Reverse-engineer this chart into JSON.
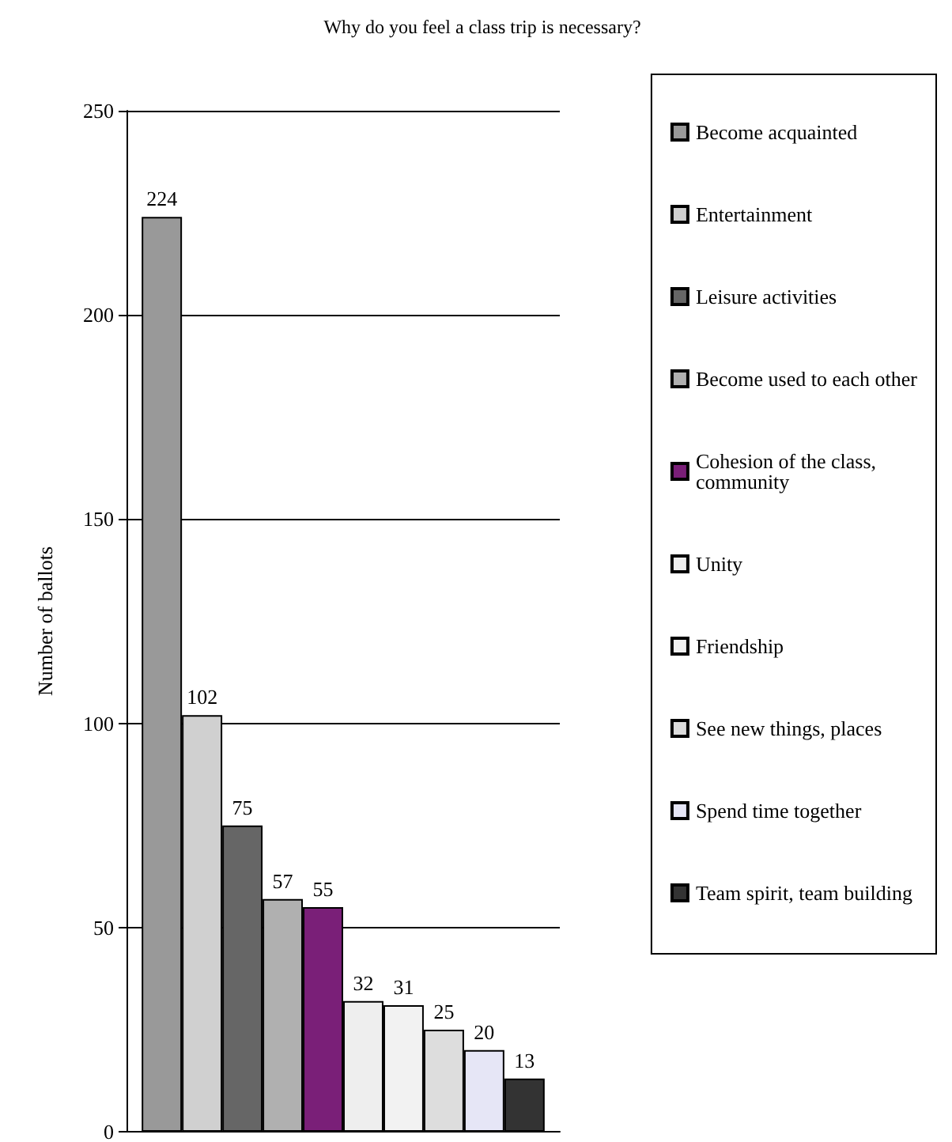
{
  "chart_data": {
    "type": "bar",
    "title": "Why do you feel a class trip is necessary?",
    "ylabel": "Number of ballots",
    "categories": [
      null
    ],
    "series": [
      {
        "name": "Become acquainted",
        "color": "#999999",
        "values": [
          224
        ]
      },
      {
        "name": "Entertainment",
        "color": "#d0d0d0",
        "values": [
          102
        ]
      },
      {
        "name": "Leisure activities",
        "color": "#666666",
        "values": [
          75
        ]
      },
      {
        "name": "Become used to each other",
        "color": "#b0b0b0",
        "values": [
          57
        ]
      },
      {
        "name": "Cohesion of the class, community",
        "color": "#7a1f78",
        "values": [
          55
        ]
      },
      {
        "name": "Unity",
        "color": "#eeeeee",
        "values": [
          32
        ]
      },
      {
        "name": "Friendship",
        "color": "#f2f2f2",
        "values": [
          31
        ]
      },
      {
        "name": "See new things, places",
        "color": "#dddddd",
        "values": [
          25
        ]
      },
      {
        "name": "Spend time together",
        "color": "#e6e6f6",
        "values": [
          20
        ]
      },
      {
        "name": "Team spirit, team building",
        "color": "#333333",
        "values": [
          13
        ]
      }
    ],
    "ylim": [
      0,
      250
    ],
    "yticks": [
      0,
      50,
      100,
      150,
      200,
      250
    ],
    "grid": "y",
    "legend": "right",
    "data_labels": true
  }
}
